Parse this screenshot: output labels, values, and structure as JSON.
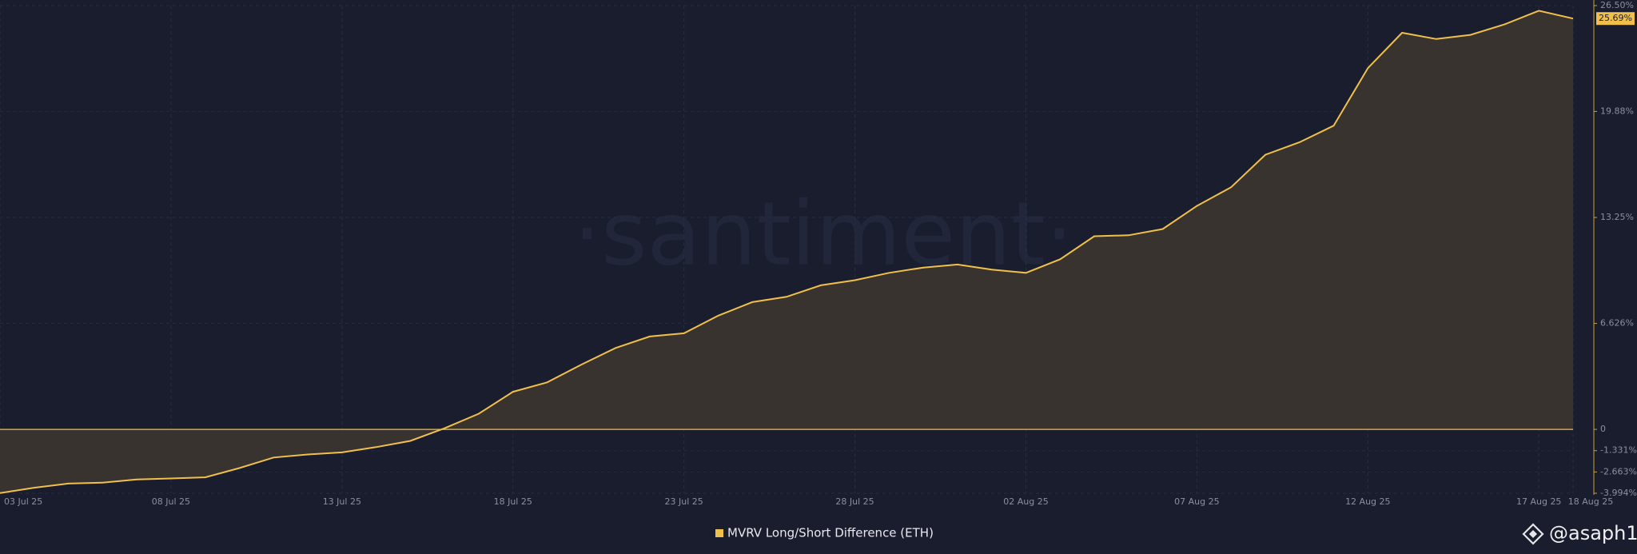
{
  "chart_data": {
    "type": "line",
    "watermark": "·santiment·",
    "categories": [
      "03 Jul 25",
      null,
      null,
      null,
      null,
      "08 Jul 25",
      null,
      null,
      null,
      null,
      "13 Jul 25",
      null,
      null,
      null,
      null,
      "18 Jul 25",
      null,
      null,
      null,
      null,
      "23 Jul 25",
      null,
      null,
      null,
      null,
      "28 Jul 25",
      null,
      null,
      null,
      null,
      "02 Aug 25",
      null,
      null,
      null,
      null,
      "07 Aug 25",
      null,
      null,
      null,
      null,
      "12 Aug 25",
      null,
      null,
      null,
      null,
      "17 Aug 25",
      "18 Aug 25"
    ],
    "series": [
      {
        "name": "MVRV Long/Short Difference (ETH)",
        "color": "#f0c04a",
        "values": [
          -3.98,
          -3.65,
          -3.39,
          -3.33,
          -3.13,
          -3.07,
          -3.0,
          -2.42,
          -1.76,
          -1.57,
          -1.44,
          -1.11,
          -0.72,
          0.07,
          0.98,
          2.35,
          2.94,
          4.05,
          5.09,
          5.81,
          6.01,
          7.11,
          7.96,
          8.29,
          9.01,
          9.33,
          9.79,
          10.12,
          10.31,
          9.99,
          9.79,
          10.64,
          12.08,
          12.14,
          12.53,
          13.97,
          15.14,
          17.17,
          17.95,
          18.99,
          22.59,
          24.8,
          24.41,
          24.67,
          25.33,
          26.18,
          25.69
        ],
        "value_labels": [
          null,
          null,
          null,
          null,
          null,
          null,
          null,
          null,
          null,
          null,
          null,
          null,
          null,
          null,
          null,
          null,
          null,
          null,
          null,
          null,
          null,
          null,
          null,
          null,
          null,
          null,
          null,
          null,
          null,
          null,
          null,
          null,
          null,
          null,
          null,
          null,
          null,
          null,
          null,
          null,
          null,
          null,
          null,
          null,
          null,
          null,
          "25.69%"
        ]
      }
    ],
    "ylim": [
      -3.994,
      26.5
    ],
    "yticks": [
      {
        "value": 26.5,
        "label": "26.50%"
      },
      {
        "value": 19.88,
        "label": "19.88%"
      },
      {
        "value": 13.25,
        "label": "13.25%"
      },
      {
        "value": 6.626,
        "label": "6.626%"
      },
      0,
      {
        "value": -1.331,
        "label": "-1.331%"
      },
      {
        "value": -2.663,
        "label": "-2.663%"
      },
      {
        "value": -3.994,
        "label": "-3.994%"
      }
    ],
    "grid": true,
    "credit": "@asaph1"
  }
}
